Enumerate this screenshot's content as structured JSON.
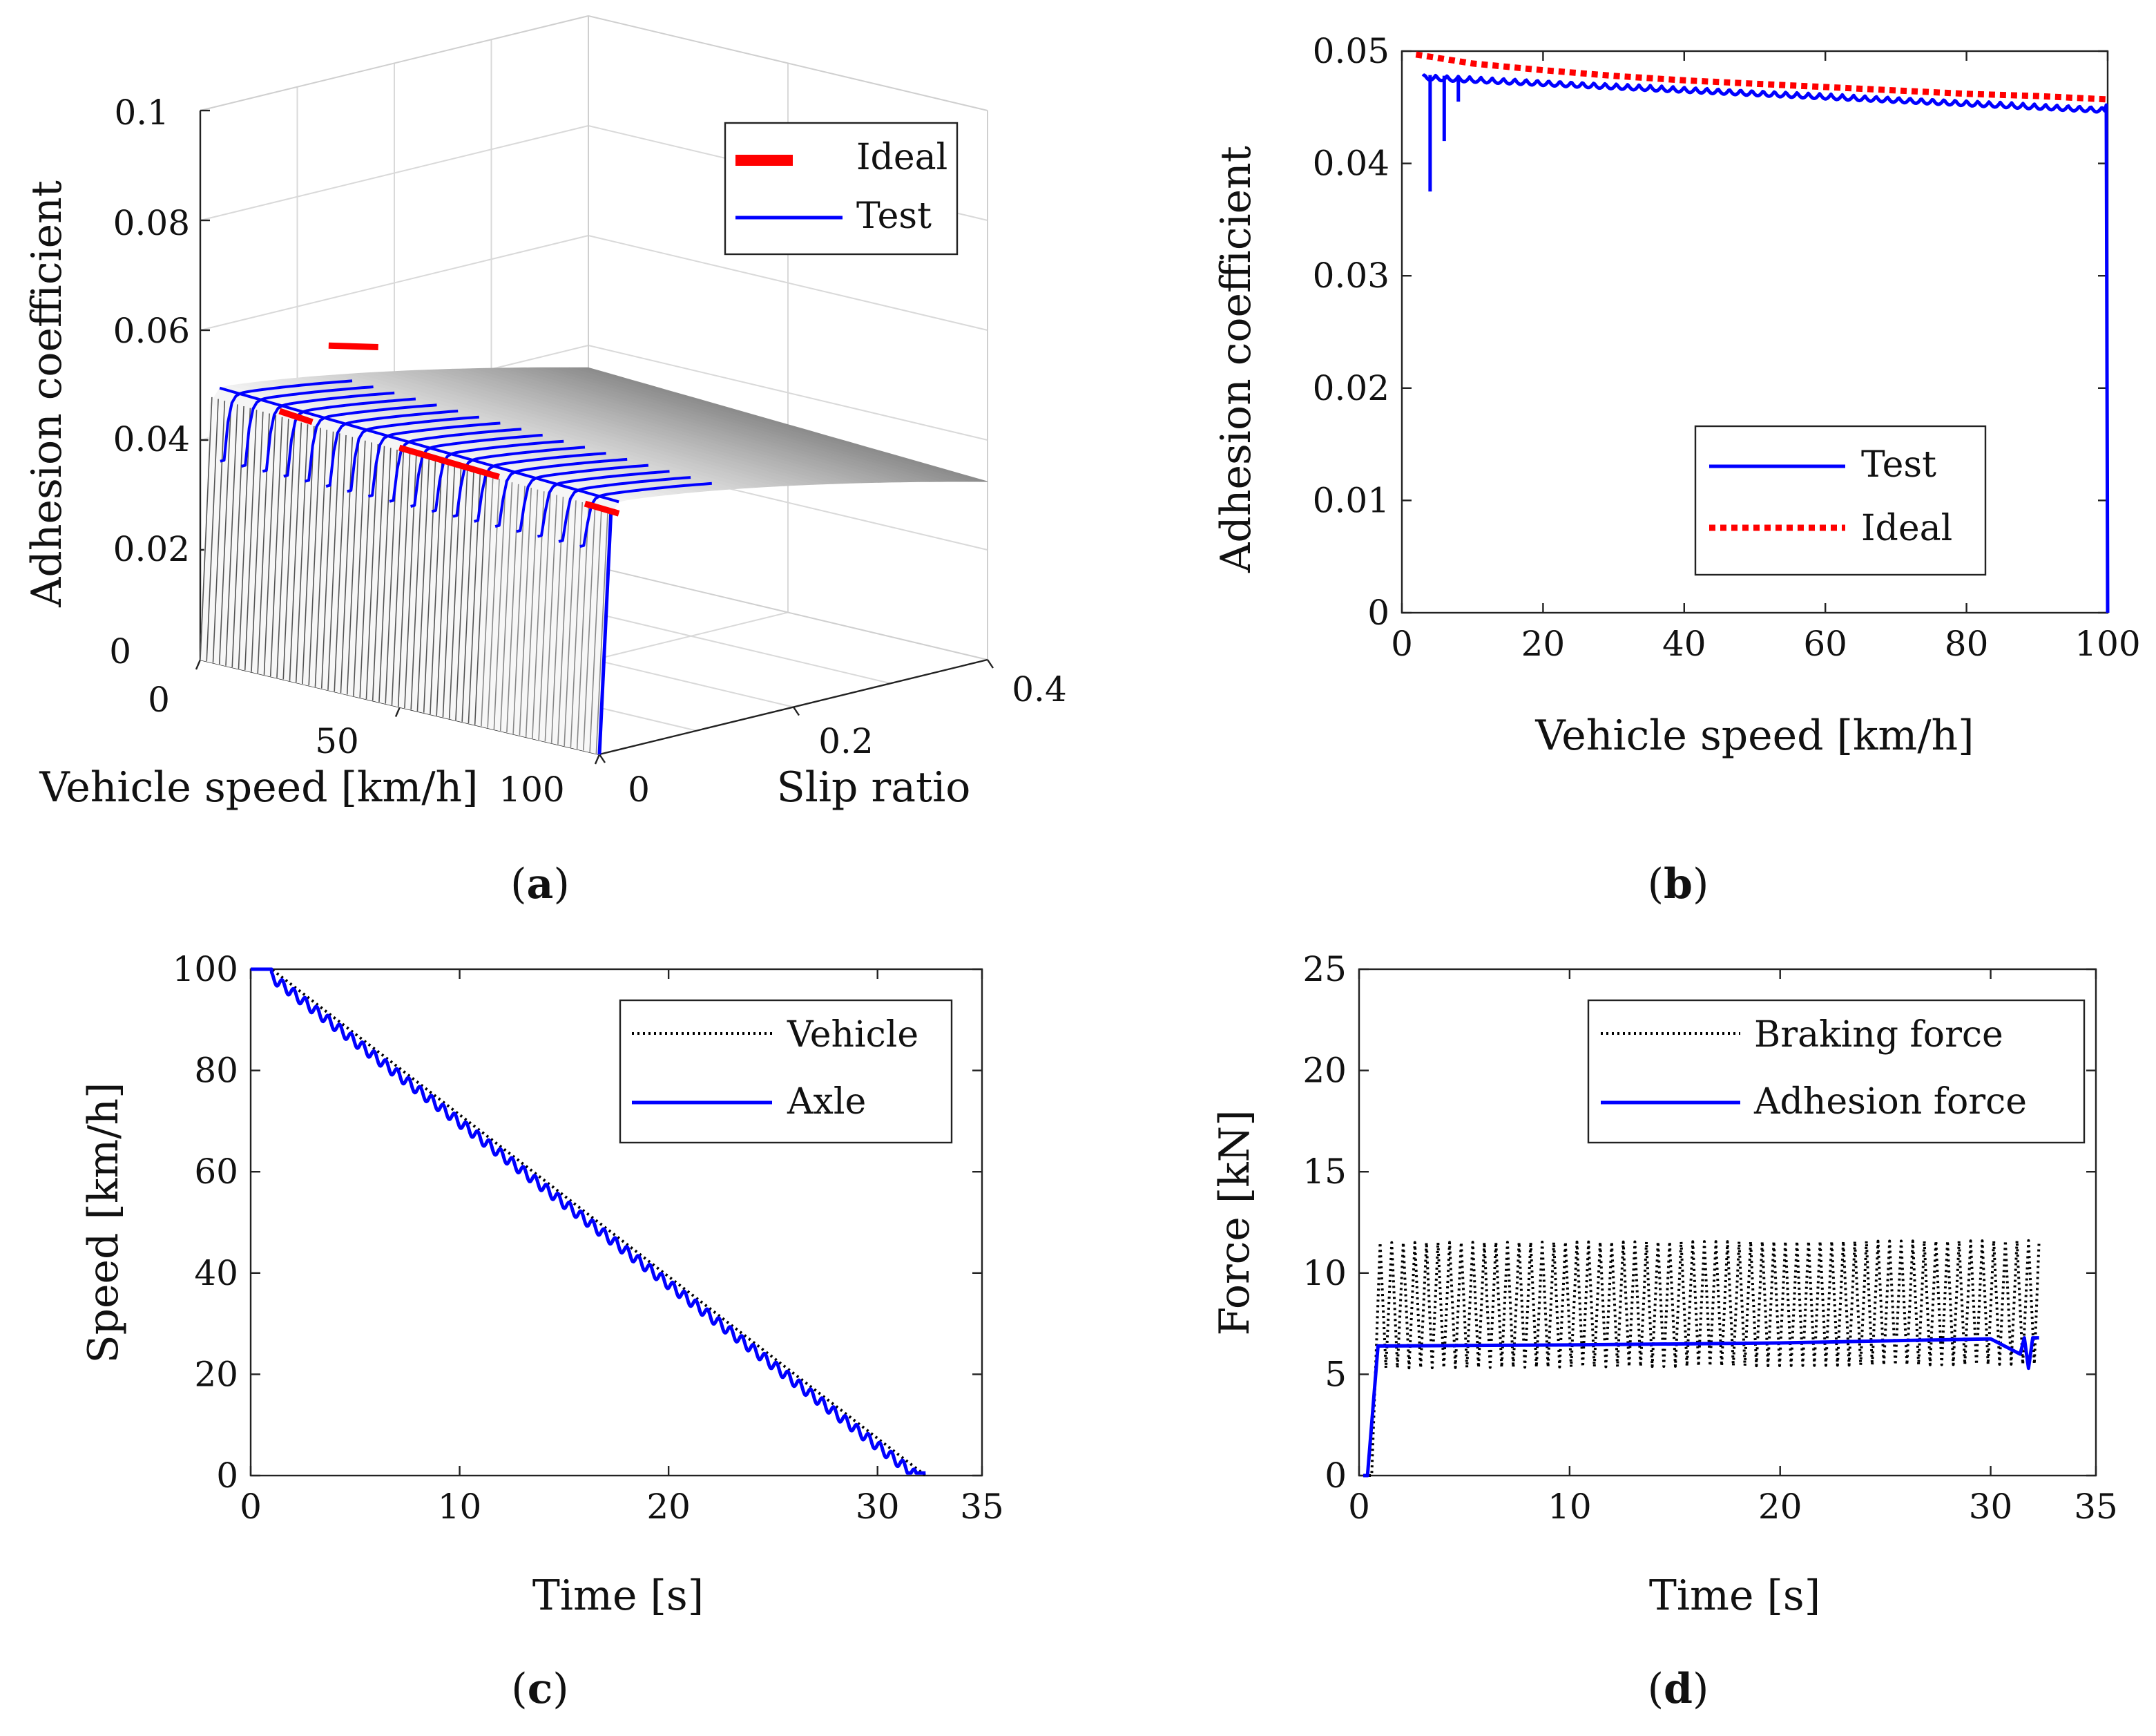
{
  "chart_data": [
    {
      "id": "a",
      "type": "surface3d",
      "caption": "(a)",
      "caption_letter": "a",
      "zlabel": "Adhesion coefficient",
      "xlabel": "Vehicle speed [km/h]",
      "ylabel": "Slip ratio",
      "zticks": [
        "0",
        "0.02",
        "0.04",
        "0.06",
        "0.08",
        "0.1"
      ],
      "xticks": [
        "0",
        "50",
        "100"
      ],
      "yticks": [
        "0",
        "0.2",
        "0.4"
      ],
      "zlim": [
        0,
        0.1
      ],
      "xlim": [
        0,
        100
      ],
      "ylim": [
        0,
        0.4
      ],
      "legend": [
        {
          "name": "Ideal",
          "color": "#ff0000",
          "style": "thick-dash"
        },
        {
          "name": "Test",
          "color": "#0000ff",
          "style": "solid"
        }
      ]
    },
    {
      "id": "b",
      "type": "line",
      "caption": "(b)",
      "caption_letter": "b",
      "xlabel": "Vehicle speed [km/h]",
      "ylabel": "Adhesion coefficient",
      "xlim": [
        0,
        100
      ],
      "ylim": [
        0,
        0.05
      ],
      "xticks": [
        "0",
        "20",
        "40",
        "60",
        "80",
        "100"
      ],
      "yticks": [
        "0",
        "0.01",
        "0.02",
        "0.03",
        "0.04",
        "0.05"
      ],
      "series": [
        {
          "name": "Test",
          "color": "#0000ff",
          "style": "solid",
          "x": [
            100,
            99.8,
            99.6,
            95,
            90,
            85,
            80,
            75,
            70,
            65,
            60,
            55,
            50,
            45,
            40,
            35,
            30,
            25,
            20,
            15,
            10,
            8,
            6,
            4,
            3
          ],
          "y": [
            0,
            0.045,
            0.0452,
            0.0453,
            0.0455,
            0.0457,
            0.0459,
            0.0461,
            0.0463,
            0.0465,
            0.0467,
            0.0468,
            0.047,
            0.0471,
            0.0473,
            0.0474,
            0.0475,
            0.0476,
            0.0477,
            0.0478,
            0.0479,
            0.0455,
            0.042,
            0.0375,
            0.0483
          ]
        },
        {
          "name": "Ideal",
          "color": "#ff0000",
          "style": "dotted",
          "x": [
            2,
            10,
            20,
            30,
            40,
            50,
            60,
            70,
            80,
            90,
            100
          ],
          "y": [
            0.0497,
            0.0489,
            0.0483,
            0.0478,
            0.0474,
            0.0471,
            0.0468,
            0.0465,
            0.0462,
            0.046,
            0.0457
          ]
        }
      ]
    },
    {
      "id": "c",
      "type": "line",
      "caption": "(c)",
      "caption_letter": "c",
      "xlabel": "Time [s]",
      "ylabel": "Speed [km/h]",
      "xlim": [
        0,
        35
      ],
      "ylim": [
        0,
        100
      ],
      "xticks": [
        "0",
        "10",
        "20",
        "30",
        "35"
      ],
      "yticks": [
        "0",
        "20",
        "40",
        "60",
        "80",
        "100"
      ],
      "series": [
        {
          "name": "Vehicle",
          "color": "#000000",
          "style": "dotted",
          "x": [
            0,
            1,
            32.3
          ],
          "y": [
            100,
            100,
            0
          ]
        },
        {
          "name": "Axle",
          "color": "#0000ff",
          "style": "solid-oscillating",
          "x": [
            0,
            1,
            32.3
          ],
          "y": [
            100,
            100,
            0
          ],
          "oscillation_amplitude": 2.5,
          "oscillation_period": 0.55
        }
      ]
    },
    {
      "id": "d",
      "type": "line",
      "caption": "(d)",
      "caption_letter": "d",
      "xlabel": "Time [s]",
      "ylabel": "Force [kN]",
      "xlim": [
        0,
        35
      ],
      "ylim": [
        0,
        25
      ],
      "xticks": [
        "0",
        "10",
        "20",
        "30",
        "35"
      ],
      "yticks": [
        "0",
        "5",
        "10",
        "15",
        "20",
        "25"
      ],
      "series": [
        {
          "name": "Braking force",
          "color": "#000000",
          "style": "dotted-oscillating",
          "x": [
            0.2,
            1,
            32.3
          ],
          "y_low": 5.3,
          "y_high": 11.5,
          "oscillation_period": 0.55
        },
        {
          "name": "Adhesion force",
          "color": "#0000ff",
          "style": "solid",
          "x": [
            0.2,
            0.4,
            0.9,
            10,
            20,
            30,
            31.4,
            31.6,
            31.8,
            32.0,
            32.3
          ],
          "y": [
            0,
            0,
            6.4,
            6.45,
            6.55,
            6.75,
            6.0,
            6.8,
            5.3,
            6.8,
            6.8
          ]
        }
      ]
    }
  ]
}
